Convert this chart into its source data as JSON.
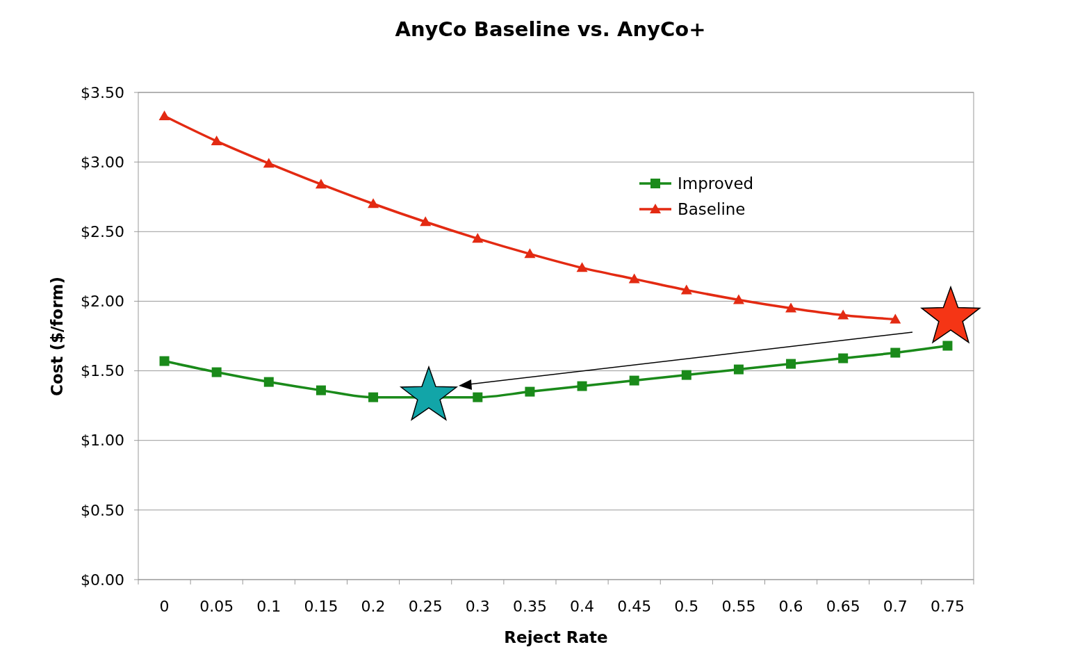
{
  "chart_data": {
    "type": "line",
    "title": "AnyCo Baseline vs. AnyCo+",
    "xlabel": "Reject Rate",
    "ylabel": "Cost ($/form)",
    "categories": [
      "0",
      "0.05",
      "0.1",
      "0.15",
      "0.2",
      "0.25",
      "0.3",
      "0.35",
      "0.4",
      "0.45",
      "0.5",
      "0.55",
      "0.6",
      "0.65",
      "0.7",
      "0.75"
    ],
    "series": [
      {
        "name": "Improved",
        "color": "#1a8a1a",
        "marker": "square",
        "values": [
          1.57,
          1.49,
          1.42,
          1.36,
          1.31,
          null,
          1.31,
          1.35,
          1.39,
          1.43,
          1.47,
          1.51,
          1.55,
          1.59,
          1.63,
          1.68
        ]
      },
      {
        "name": "Baseline",
        "color": "#e32a12",
        "marker": "triangle",
        "values": [
          3.33,
          3.15,
          2.99,
          2.84,
          2.7,
          2.57,
          2.45,
          2.34,
          2.24,
          2.16,
          2.08,
          2.01,
          1.95,
          1.9,
          1.87,
          null
        ]
      }
    ],
    "ylim": [
      0,
      3.5
    ],
    "yticks": [
      {
        "value": 0,
        "label": "$0.00"
      },
      {
        "value": 0.5,
        "label": "$0.50"
      },
      {
        "value": 1,
        "label": "$1.00"
      },
      {
        "value": 1.5,
        "label": "$1.50"
      },
      {
        "value": 2,
        "label": "$2.00"
      },
      {
        "value": 2.5,
        "label": "$2.50"
      },
      {
        "value": 3,
        "label": "$3.00"
      },
      {
        "value": 3.5,
        "label": "$3.50"
      }
    ],
    "grid": "y",
    "legend": "top right"
  }
}
